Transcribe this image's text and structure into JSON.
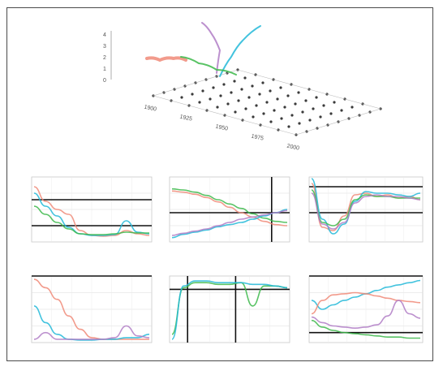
{
  "chart_data": [
    {
      "type": "scatter",
      "subplot": "top-3d",
      "title": "",
      "xlabel": "",
      "ylabel": "",
      "x_tick_labels": [
        "1900",
        "1925",
        "1950",
        "1975",
        "2000"
      ],
      "z_tick_labels": [
        "0",
        "1",
        "2",
        "3",
        "4"
      ],
      "grid": "dot-lattice",
      "series": [
        {
          "color": "#f08a78",
          "values": [
            3.0,
            3.1,
            3.05,
            3.2
          ]
        },
        {
          "color": "#22b8d8",
          "values": [
            0.2,
            1.4,
            2.9,
            4.3
          ]
        },
        {
          "color": "#b07cc6",
          "values": [
            0.1,
            1.8,
            3.4,
            4.6
          ]
        },
        {
          "color": "#3cb84a",
          "values": [
            2.8,
            2.5,
            2.2,
            2.0
          ]
        }
      ]
    },
    {
      "type": "line",
      "subplot": "mid-left",
      "xlabel": "",
      "ylim": [
        0,
        4
      ],
      "grid": true,
      "series": [
        {
          "color": "#f08a78",
          "x": [
            0,
            1,
            2,
            3,
            4,
            5,
            6,
            7,
            8,
            9,
            10
          ],
          "values": [
            3.4,
            2.5,
            2.0,
            1.7,
            0.7,
            0.4,
            0.35,
            0.4,
            0.7,
            0.5,
            0.4
          ]
        },
        {
          "color": "#22b8d8",
          "x": [
            0,
            1,
            2,
            3,
            4,
            5,
            6,
            7,
            8,
            9,
            10
          ],
          "values": [
            3.0,
            2.2,
            1.6,
            0.9,
            0.5,
            0.4,
            0.4,
            0.45,
            1.3,
            0.6,
            0.5
          ]
        },
        {
          "color": "#3cb84a",
          "x": [
            0,
            1,
            2,
            3,
            4,
            5,
            6,
            7,
            8,
            9,
            10
          ],
          "values": [
            2.2,
            1.7,
            1.2,
            0.8,
            0.5,
            0.45,
            0.45,
            0.5,
            0.6,
            0.55,
            0.55
          ]
        }
      ]
    },
    {
      "type": "line",
      "subplot": "mid-center",
      "xlabel": "",
      "ylim": [
        -2,
        4
      ],
      "grid": true,
      "series": [
        {
          "color": "#f08a78",
          "x": [
            0,
            1,
            2,
            3,
            4,
            5,
            6,
            7,
            8,
            9,
            10
          ],
          "values": [
            2.7,
            2.6,
            2.4,
            2.1,
            1.7,
            1.2,
            0.7,
            0.3,
            -0.1,
            -0.4,
            -0.5
          ]
        },
        {
          "color": "#3cb84a",
          "x": [
            0,
            1,
            2,
            3,
            4,
            5,
            6,
            7,
            8,
            9,
            10
          ],
          "values": [
            2.9,
            2.8,
            2.6,
            2.3,
            1.9,
            1.5,
            1.1,
            0.6,
            0.2,
            -0.1,
            -0.2
          ]
        },
        {
          "color": "#22b8d8",
          "x": [
            0,
            1,
            2,
            3,
            4,
            5,
            6,
            7,
            8,
            9,
            10
          ],
          "values": [
            -1.6,
            -1.3,
            -1.1,
            -0.9,
            -0.6,
            -0.4,
            -0.2,
            0.1,
            0.4,
            0.7,
            1.0
          ]
        },
        {
          "color": "#b07cc6",
          "x": [
            0,
            1,
            2,
            3,
            4,
            5,
            6,
            7,
            8,
            9,
            10
          ],
          "values": [
            -1.4,
            -1.2,
            -1.0,
            -0.8,
            -0.5,
            -0.2,
            0.1,
            0.3,
            0.5,
            0.7,
            0.9
          ]
        }
      ]
    },
    {
      "type": "line",
      "subplot": "mid-right",
      "xlabel": "",
      "ylim": [
        -2,
        2
      ],
      "grid": true,
      "series": [
        {
          "color": "#f08a78",
          "x": [
            0,
            1,
            2,
            3,
            4,
            5,
            6,
            7,
            8,
            9,
            10
          ],
          "values": [
            1.6,
            -1.1,
            -1.3,
            -0.4,
            0.9,
            1.0,
            0.8,
            0.9,
            0.7,
            0.8,
            0.6
          ]
        },
        {
          "color": "#22b8d8",
          "x": [
            0,
            1,
            2,
            3,
            4,
            5,
            6,
            7,
            8,
            9,
            10
          ],
          "values": [
            1.9,
            -0.6,
            -1.5,
            -0.9,
            0.5,
            1.1,
            1.0,
            1.0,
            0.9,
            0.8,
            1.0
          ]
        },
        {
          "color": "#3cb84a",
          "x": [
            0,
            1,
            2,
            3,
            4,
            5,
            6,
            7,
            8,
            9,
            10
          ],
          "values": [
            1.2,
            -0.8,
            -1.0,
            -0.6,
            0.6,
            0.9,
            0.8,
            0.8,
            0.7,
            0.7,
            0.7
          ]
        },
        {
          "color": "#b07cc6",
          "x": [
            0,
            1,
            2,
            3,
            4,
            5,
            6,
            7,
            8,
            9,
            10
          ],
          "values": [
            1.0,
            -0.9,
            -1.2,
            -0.8,
            0.4,
            0.8,
            0.9,
            0.8,
            0.8,
            0.7,
            0.6
          ]
        }
      ]
    },
    {
      "type": "line",
      "subplot": "bot-left",
      "xlabel": "",
      "ylim": [
        0,
        4
      ],
      "grid": true,
      "series": [
        {
          "color": "#f08a78",
          "x": [
            0,
            1,
            2,
            3,
            4,
            5,
            6,
            7,
            8,
            9,
            10
          ],
          "values": [
            3.8,
            3.3,
            2.6,
            1.6,
            0.8,
            0.3,
            0.2,
            0.2,
            0.2,
            0.2,
            0.2
          ]
        },
        {
          "color": "#22b8d8",
          "x": [
            0,
            1,
            2,
            3,
            4,
            5,
            6,
            7,
            8,
            9,
            10
          ],
          "values": [
            2.2,
            1.2,
            0.5,
            0.2,
            0.15,
            0.15,
            0.2,
            0.2,
            0.3,
            0.3,
            0.5
          ]
        },
        {
          "color": "#b07cc6",
          "x": [
            0,
            1,
            2,
            3,
            4,
            5,
            6,
            7,
            8,
            9,
            10
          ],
          "values": [
            0.2,
            0.6,
            0.2,
            0.2,
            0.2,
            0.2,
            0.2,
            0.3,
            1.0,
            0.4,
            0.3
          ]
        }
      ]
    },
    {
      "type": "line",
      "subplot": "bot-center",
      "xlabel": "",
      "ylim": [
        -3,
        1
      ],
      "grid": true,
      "series": [
        {
          "color": "#3cb84a",
          "x": [
            0,
            1,
            2,
            3,
            4,
            5,
            6,
            7,
            8,
            9,
            10
          ],
          "values": [
            -2.5,
            0.3,
            0.6,
            0.6,
            0.5,
            0.5,
            0.6,
            -0.8,
            0.4,
            0.4,
            0.3
          ]
        },
        {
          "color": "#22b8d8",
          "x": [
            0,
            1,
            2,
            3,
            4,
            5,
            6,
            7,
            8,
            9,
            10
          ],
          "values": [
            -2.8,
            0.4,
            0.7,
            0.7,
            0.6,
            0.6,
            0.6,
            0.5,
            0.5,
            0.4,
            0.3
          ]
        }
      ]
    },
    {
      "type": "line",
      "subplot": "bot-right",
      "xlabel": "",
      "ylim": [
        -2,
        4
      ],
      "grid": true,
      "series": [
        {
          "color": "#22b8d8",
          "x": [
            0,
            1,
            2,
            3,
            4,
            5,
            6,
            7,
            8,
            9,
            10
          ],
          "values": [
            1.8,
            1.0,
            1.4,
            1.8,
            2.1,
            2.4,
            2.7,
            3.0,
            3.2,
            3.4,
            3.6
          ]
        },
        {
          "color": "#f08a78",
          "x": [
            0,
            1,
            2,
            3,
            4,
            5,
            6,
            7,
            8,
            9,
            10
          ],
          "values": [
            0.6,
            1.8,
            2.3,
            2.4,
            2.5,
            2.4,
            2.2,
            2.0,
            1.8,
            1.7,
            1.6
          ]
        },
        {
          "color": "#3cb84a",
          "x": [
            0,
            1,
            2,
            3,
            4,
            5,
            6,
            7,
            8,
            9,
            10
          ],
          "values": [
            0.0,
            -0.6,
            -0.9,
            -1.1,
            -1.2,
            -1.3,
            -1.4,
            -1.5,
            -1.5,
            -1.6,
            -1.6
          ]
        },
        {
          "color": "#b07cc6",
          "x": [
            0,
            1,
            2,
            3,
            4,
            5,
            6,
            7,
            8,
            9,
            10
          ],
          "values": [
            0.3,
            -0.2,
            -0.5,
            -0.6,
            -0.7,
            -0.6,
            -0.4,
            0.4,
            1.8,
            0.6,
            0.2
          ]
        }
      ]
    }
  ]
}
